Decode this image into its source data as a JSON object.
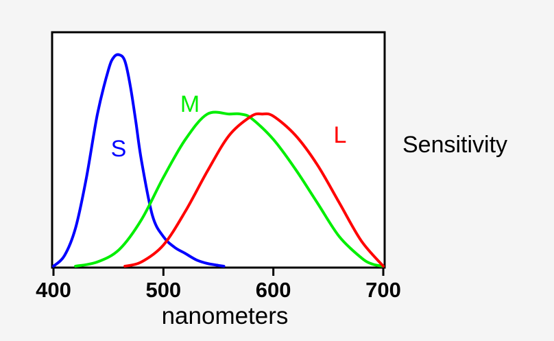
{
  "chart_data": {
    "type": "line",
    "title": "",
    "xlabel": "nanometers",
    "ylabel": "Sensitivity",
    "xlim": [
      400,
      700
    ],
    "ylim": [
      0,
      1
    ],
    "xticks": [
      400,
      500,
      600,
      700
    ],
    "xtick_labels": [
      "400",
      "500",
      "600",
      "700"
    ],
    "grid": false,
    "series": [
      {
        "name": "S",
        "color": "#0000ff",
        "x": [
          400,
          410,
          420,
          430,
          440,
          450,
          455,
          460,
          465,
          470,
          475,
          480,
          490,
          500,
          510,
          520,
          530,
          540,
          550,
          555
        ],
        "y": [
          0.0,
          0.05,
          0.18,
          0.42,
          0.72,
          0.93,
          0.99,
          1.0,
          0.97,
          0.85,
          0.68,
          0.5,
          0.24,
          0.14,
          0.09,
          0.06,
          0.03,
          0.013,
          0.004,
          0.0
        ]
      },
      {
        "name": "M",
        "color": "#00ee00",
        "x": [
          420,
          440,
          460,
          480,
          500,
          520,
          540,
          560,
          570,
          580,
          600,
          620,
          640,
          660,
          680,
          690,
          700
        ],
        "y": [
          0.0,
          0.02,
          0.08,
          0.22,
          0.42,
          0.6,
          0.72,
          0.72,
          0.72,
          0.7,
          0.6,
          0.46,
          0.3,
          0.14,
          0.04,
          0.01,
          0.0
        ]
      },
      {
        "name": "L",
        "color": "#ff0000",
        "x": [
          465,
          480,
          500,
          520,
          540,
          560,
          580,
          590,
          600,
          620,
          640,
          660,
          680,
          700
        ],
        "y": [
          0.0,
          0.02,
          0.1,
          0.26,
          0.45,
          0.62,
          0.71,
          0.72,
          0.71,
          0.62,
          0.48,
          0.3,
          0.12,
          0.0
        ]
      }
    ]
  }
}
